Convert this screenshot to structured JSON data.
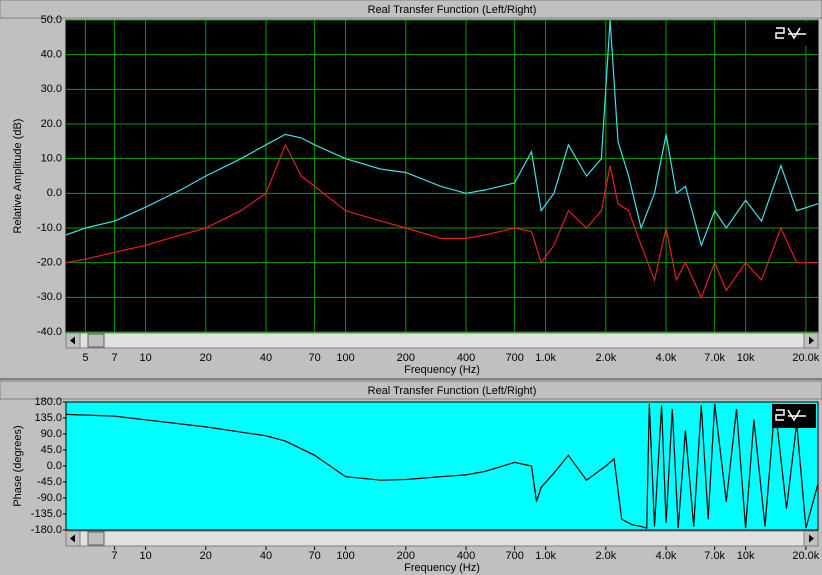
{
  "chart_data": [
    {
      "type": "line",
      "title": "Real Transfer Function (Left/Right)",
      "xlabel": "Frequency (Hz)",
      "ylabel": "Relative Amplitude (dB)",
      "xscale": "log",
      "background": "#000000",
      "grid": true,
      "grid_color": "#00a000",
      "xlim": [
        4,
        23000
      ],
      "ylim": [
        -40,
        50
      ],
      "xticks": [
        5,
        7,
        10,
        20,
        40,
        70,
        100,
        200,
        400,
        700,
        {
          "value": 1000,
          "label": "1.0k"
        },
        {
          "value": 2000,
          "label": "2.0k"
        },
        {
          "value": 4000,
          "label": "4.0k"
        },
        {
          "value": 7000,
          "label": "7.0k"
        },
        {
          "value": 10000,
          "label": "10k"
        },
        {
          "value": 20000,
          "label": "20.0k"
        }
      ],
      "yticks": [
        {
          "value": -40,
          "label": "-40.0"
        },
        {
          "value": -30,
          "label": "-30.0"
        },
        {
          "value": -20,
          "label": "-20.0"
        },
        {
          "value": -10,
          "label": "-10.0"
        },
        {
          "value": 0,
          "label": "0.0"
        },
        {
          "value": 10,
          "label": "10.0"
        },
        {
          "value": 20,
          "label": "20.0"
        },
        {
          "value": 30,
          "label": "30.0"
        },
        {
          "value": 40,
          "label": "40.0"
        },
        {
          "value": 50,
          "label": "50.0"
        }
      ],
      "x": [
        4,
        5,
        7,
        10,
        15,
        20,
        30,
        40,
        50,
        60,
        70,
        100,
        150,
        200,
        300,
        400,
        500,
        700,
        850,
        950,
        1100,
        1300,
        1600,
        1900,
        2100,
        2300,
        2600,
        3000,
        3500,
        4000,
        4500,
        5000,
        6000,
        7000,
        8000,
        10000,
        12000,
        15000,
        18000,
        23000
      ],
      "series": [
        {
          "color": "#40e0e0",
          "values": [
            -12,
            -10,
            -8,
            -4,
            1,
            5,
            10,
            14,
            17,
            16,
            14,
            10,
            7,
            6,
            2,
            0,
            1,
            3,
            12,
            -5,
            0,
            14,
            5,
            10,
            50,
            15,
            5,
            -10,
            0,
            17,
            0,
            2,
            -15,
            -5,
            -10,
            -2,
            -8,
            8,
            -5,
            -3
          ]
        },
        {
          "color": "#e02020",
          "values": [
            -20,
            -19,
            -17,
            -15,
            -12,
            -10,
            -5,
            0,
            14,
            5,
            2,
            -5,
            -8,
            -10,
            -13,
            -13,
            -12,
            -10,
            -11,
            -20,
            -15,
            -5,
            -10,
            -5,
            8,
            -3,
            -5,
            -15,
            -25,
            -10,
            -25,
            -20,
            -30,
            -20,
            -28,
            -20,
            -25,
            -10,
            -20,
            -20
          ]
        }
      ]
    },
    {
      "type": "line",
      "title": "Real Transfer Function (Left/Right)",
      "xlabel": "Frequency (Hz)",
      "ylabel": "Phase (degrees)",
      "xscale": "log",
      "background": "#00ffff",
      "grid": false,
      "xlim": [
        4,
        23000
      ],
      "ylim": [
        -180,
        180
      ],
      "xticks": [
        7,
        10,
        20,
        40,
        70,
        100,
        200,
        400,
        700,
        {
          "value": 1000,
          "label": "1.0k"
        },
        {
          "value": 2000,
          "label": "2.0k"
        },
        {
          "value": 4000,
          "label": "4.0k"
        },
        {
          "value": 7000,
          "label": "7.0k"
        },
        {
          "value": 10000,
          "label": "10k"
        },
        {
          "value": 20000,
          "label": "20.0k"
        }
      ],
      "yticks": [
        {
          "value": -180,
          "label": "-180.0"
        },
        {
          "value": -135,
          "label": "-135.0"
        },
        {
          "value": -90,
          "label": "-90.0"
        },
        {
          "value": -45,
          "label": "-45.0"
        },
        {
          "value": 0,
          "label": "0.0"
        },
        {
          "value": 45,
          "label": "45.0"
        },
        {
          "value": 90,
          "label": "90.0"
        },
        {
          "value": 135,
          "label": "135.0"
        },
        {
          "value": 180,
          "label": "180.0"
        }
      ],
      "x": [
        4,
        7,
        10,
        20,
        40,
        50,
        70,
        100,
        150,
        200,
        300,
        400,
        500,
        700,
        850,
        900,
        950,
        1100,
        1300,
        1600,
        2000,
        2200,
        2400,
        2700,
        3000,
        3200,
        3300,
        3500,
        3800,
        4000,
        4300,
        4600,
        5000,
        5500,
        6000,
        6500,
        7000,
        8000,
        9000,
        10000,
        11000,
        12500,
        14000,
        16000,
        18000,
        20000,
        23000
      ],
      "series": [
        {
          "color": "#000000",
          "values": [
            145,
            140,
            130,
            110,
            85,
            70,
            30,
            -30,
            -40,
            -38,
            -30,
            -25,
            -15,
            10,
            0,
            -100,
            -60,
            -20,
            30,
            -40,
            0,
            20,
            -150,
            -165,
            -170,
            -175,
            175,
            -170,
            170,
            -160,
            160,
            -175,
            100,
            -170,
            170,
            -150,
            175,
            -100,
            160,
            -175,
            130,
            -170,
            170,
            -120,
            120,
            -175,
            -50
          ]
        }
      ]
    }
  ]
}
